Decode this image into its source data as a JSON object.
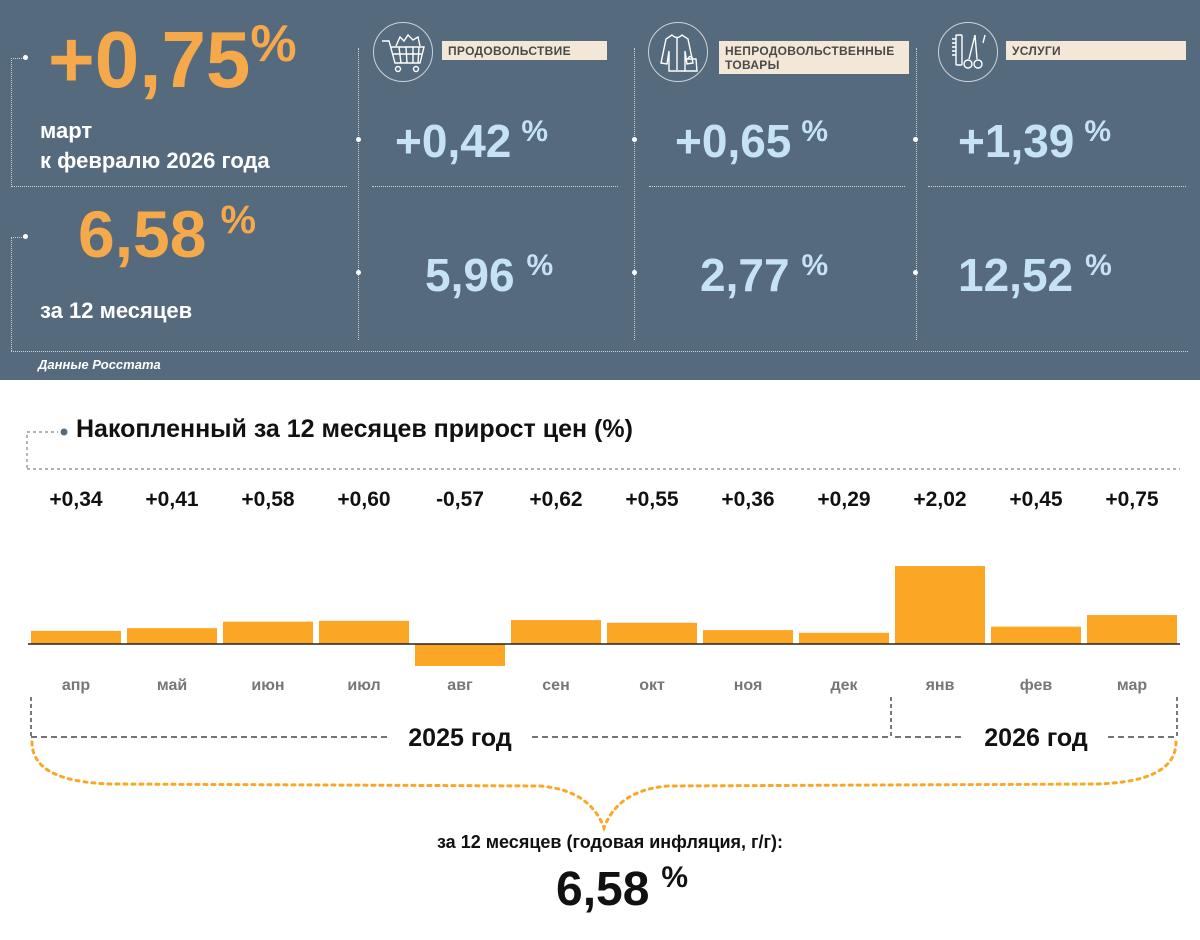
{
  "headline": {
    "monthly_value": "+0,75",
    "monthly_unit": "%",
    "monthly_desc_line1": "март",
    "monthly_desc_line2": "к февралю 2026 года",
    "annual_value": "6,58",
    "annual_unit": "%",
    "annual_desc": "за 12 месяцев"
  },
  "categories": [
    {
      "label": "ПРОДОВОЛЬСТВИЕ",
      "icon": "shopping-cart-icon",
      "monthly": "+0,42",
      "annual": "5,96",
      "unit": "%"
    },
    {
      "label_line1": "НЕПРОДОВОЛЬСТВЕННЫЕ",
      "label_line2": "ТОВАРЫ",
      "icon": "clothing-icon",
      "monthly": "+0,65",
      "annual": "2,77",
      "unit": "%"
    },
    {
      "label": "УСЛУГИ",
      "icon": "scissors-comb-icon",
      "monthly": "+1,39",
      "annual": "12,52",
      "unit": "%"
    }
  ],
  "source": "Данные Росстата",
  "colors": {
    "panel_bg": "#566a7e",
    "orange": "#f5a94a",
    "light_blue": "#c6e3f3",
    "bar": "#fca625",
    "label_bg": "#f3e7d7"
  },
  "chart_data": {
    "type": "bar",
    "title": "Накопленный за 12 месяцев прирост цен (%)",
    "categories": [
      "апр",
      "май",
      "июн",
      "июл",
      "авг",
      "сен",
      "окт",
      "ноя",
      "дек",
      "янв",
      "фев",
      "мар"
    ],
    "values": [
      0.34,
      0.41,
      0.58,
      0.6,
      -0.57,
      0.62,
      0.55,
      0.36,
      0.29,
      2.02,
      0.45,
      0.75
    ],
    "value_labels": [
      "+0,34",
      "+0,41",
      "+0,58",
      "+0,60",
      "-0,57",
      "+0,62",
      "+0,55",
      "+0,36",
      "+0,29",
      "+2,02",
      "+0,45",
      "+0,75"
    ],
    "year_groups": [
      {
        "label": "2025 год",
        "from": 0,
        "to": 8
      },
      {
        "label": "2026 год",
        "from": 9,
        "to": 11
      }
    ],
    "ylim": [
      -0.57,
      2.02
    ],
    "xlabel": "",
    "ylabel": ""
  },
  "summary": {
    "label": "за 12 месяцев (годовая инфляция, г/г):",
    "value": "6,58",
    "unit": "%"
  }
}
